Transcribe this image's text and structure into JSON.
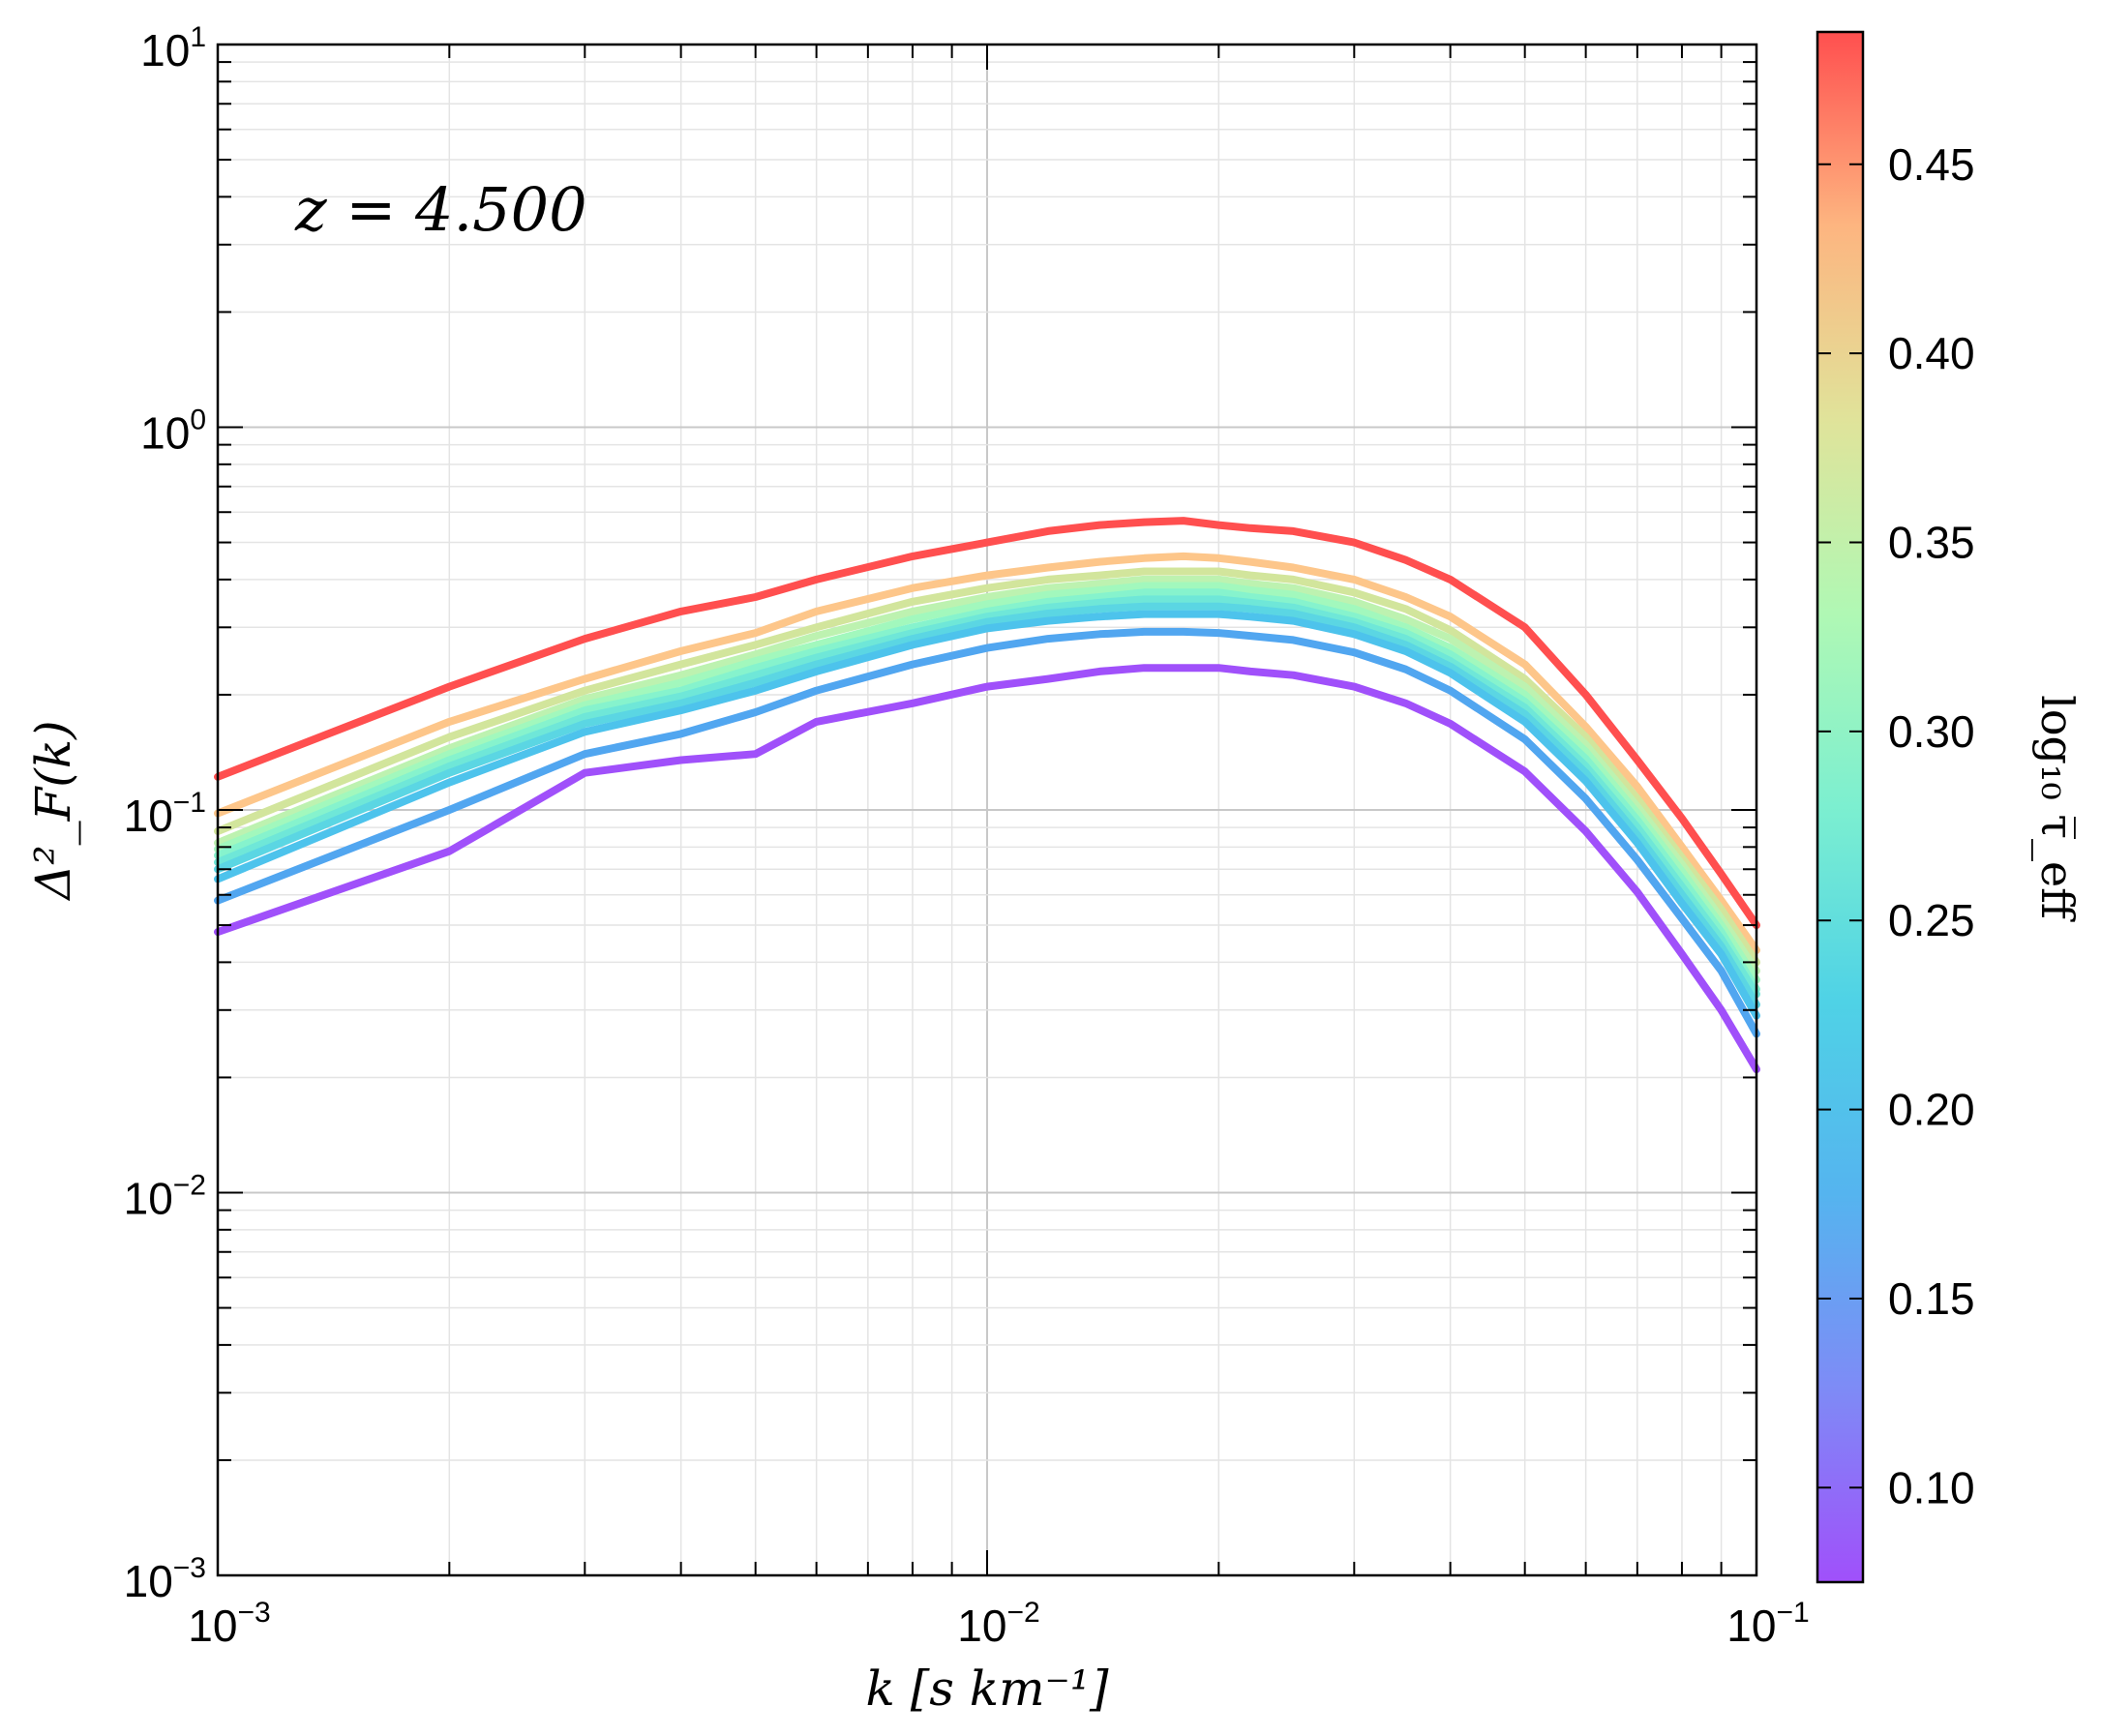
{
  "chart_data": {
    "type": "line",
    "annotation": "z = 4.500",
    "xlabel": "k [s km⁻¹]",
    "ylabel": "Δ²_F(k)",
    "x_scale": "log",
    "y_scale": "log",
    "xlim": [
      0.001,
      0.1
    ],
    "ylim": [
      0.001,
      10
    ],
    "grid": true,
    "x_ticks": [
      {
        "base": "10",
        "exp": "−3",
        "value": 0.001
      },
      {
        "base": "10",
        "exp": "−2",
        "value": 0.01
      },
      {
        "base": "10",
        "exp": "−1",
        "value": 0.1
      }
    ],
    "y_ticks": [
      {
        "base": "10",
        "exp": "−3",
        "value": 0.001
      },
      {
        "base": "10",
        "exp": "−2",
        "value": 0.01
      },
      {
        "base": "10",
        "exp": "−1",
        "value": 0.1
      },
      {
        "base": "10",
        "exp": "0",
        "value": 1
      },
      {
        "base": "10",
        "exp": "1",
        "value": 10
      }
    ],
    "colorbar": {
      "label": "log₁₀ τ̅_eff",
      "range": [
        0.075,
        0.485
      ],
      "colormap": "rainbow",
      "ticks": [
        "0.10",
        "0.15",
        "0.20",
        "0.25",
        "0.30",
        "0.35",
        "0.40",
        "0.45"
      ]
    },
    "x": [
      0.001,
      0.002,
      0.003,
      0.004,
      0.005,
      0.006,
      0.008,
      0.01,
      0.012,
      0.014,
      0.016,
      0.018,
      0.02,
      0.022,
      0.025,
      0.03,
      0.035,
      0.04,
      0.05,
      0.06,
      0.07,
      0.08,
      0.09,
      0.1
    ],
    "series": [
      {
        "tau": 0.485,
        "color": "#ff4f4f",
        "values": [
          0.122,
          0.21,
          0.28,
          0.33,
          0.36,
          0.4,
          0.46,
          0.5,
          0.535,
          0.555,
          0.565,
          0.57,
          0.555,
          0.545,
          0.535,
          0.5,
          0.45,
          0.4,
          0.3,
          0.2,
          0.135,
          0.095,
          0.068,
          0.05
        ]
      },
      {
        "tau": 0.39,
        "color": "#fdc68a",
        "values": [
          0.098,
          0.17,
          0.22,
          0.26,
          0.29,
          0.33,
          0.38,
          0.41,
          0.43,
          0.445,
          0.455,
          0.46,
          0.455,
          0.445,
          0.43,
          0.4,
          0.36,
          0.32,
          0.24,
          0.165,
          0.115,
          0.08,
          0.058,
          0.043
        ]
      },
      {
        "tau": 0.35,
        "color": "#d2e59c",
        "values": [
          0.088,
          0.155,
          0.205,
          0.24,
          0.27,
          0.3,
          0.35,
          0.38,
          0.4,
          0.41,
          0.42,
          0.42,
          0.42,
          0.41,
          0.4,
          0.37,
          0.335,
          0.295,
          0.22,
          0.155,
          0.107,
          0.075,
          0.055,
          0.04
        ]
      },
      {
        "tau": 0.32,
        "color": "#bdf2b0",
        "values": [
          0.082,
          0.145,
          0.195,
          0.225,
          0.255,
          0.285,
          0.33,
          0.36,
          0.38,
          0.39,
          0.4,
          0.4,
          0.4,
          0.39,
          0.38,
          0.35,
          0.315,
          0.28,
          0.21,
          0.148,
          0.102,
          0.072,
          0.052,
          0.038
        ]
      },
      {
        "tau": 0.29,
        "color": "#a2f8bd",
        "values": [
          0.079,
          0.14,
          0.188,
          0.215,
          0.245,
          0.27,
          0.315,
          0.345,
          0.365,
          0.375,
          0.385,
          0.385,
          0.385,
          0.375,
          0.365,
          0.335,
          0.3,
          0.265,
          0.2,
          0.142,
          0.098,
          0.069,
          0.05,
          0.036
        ]
      },
      {
        "tau": 0.26,
        "color": "#86f3cd",
        "values": [
          0.076,
          0.135,
          0.182,
          0.205,
          0.235,
          0.26,
          0.3,
          0.33,
          0.35,
          0.36,
          0.37,
          0.37,
          0.37,
          0.36,
          0.35,
          0.32,
          0.29,
          0.255,
          0.192,
          0.136,
          0.094,
          0.066,
          0.048,
          0.034
        ]
      },
      {
        "tau": 0.235,
        "color": "#6fe7d8",
        "values": [
          0.073,
          0.13,
          0.175,
          0.198,
          0.225,
          0.25,
          0.29,
          0.32,
          0.338,
          0.348,
          0.355,
          0.355,
          0.355,
          0.348,
          0.338,
          0.31,
          0.28,
          0.245,
          0.185,
          0.13,
          0.09,
          0.063,
          0.046,
          0.033
        ]
      },
      {
        "tau": 0.21,
        "color": "#5bd6e3",
        "values": [
          0.07,
          0.125,
          0.168,
          0.19,
          0.215,
          0.24,
          0.28,
          0.31,
          0.326,
          0.335,
          0.34,
          0.34,
          0.34,
          0.335,
          0.326,
          0.3,
          0.27,
          0.237,
          0.178,
          0.125,
          0.086,
          0.06,
          0.044,
          0.031
        ]
      },
      {
        "tau": 0.185,
        "color": "#4dc3ec",
        "values": [
          0.066,
          0.118,
          0.16,
          0.182,
          0.205,
          0.23,
          0.27,
          0.298,
          0.312,
          0.32,
          0.325,
          0.325,
          0.325,
          0.32,
          0.312,
          0.288,
          0.26,
          0.228,
          0.17,
          0.119,
          0.082,
          0.057,
          0.042,
          0.029
        ]
      },
      {
        "tau": 0.16,
        "color": "#51a6f0",
        "values": [
          0.058,
          0.1,
          0.14,
          0.158,
          0.18,
          0.205,
          0.24,
          0.265,
          0.28,
          0.288,
          0.292,
          0.292,
          0.29,
          0.285,
          0.278,
          0.258,
          0.233,
          0.205,
          0.153,
          0.107,
          0.074,
          0.052,
          0.038,
          0.026
        ]
      },
      {
        "tau": 0.075,
        "color": "#a050fa",
        "values": [
          0.048,
          0.078,
          0.125,
          0.135,
          0.14,
          0.17,
          0.19,
          0.21,
          0.22,
          0.23,
          0.235,
          0.235,
          0.235,
          0.23,
          0.225,
          0.21,
          0.19,
          0.168,
          0.126,
          0.088,
          0.061,
          0.042,
          0.03,
          0.021
        ]
      }
    ]
  }
}
